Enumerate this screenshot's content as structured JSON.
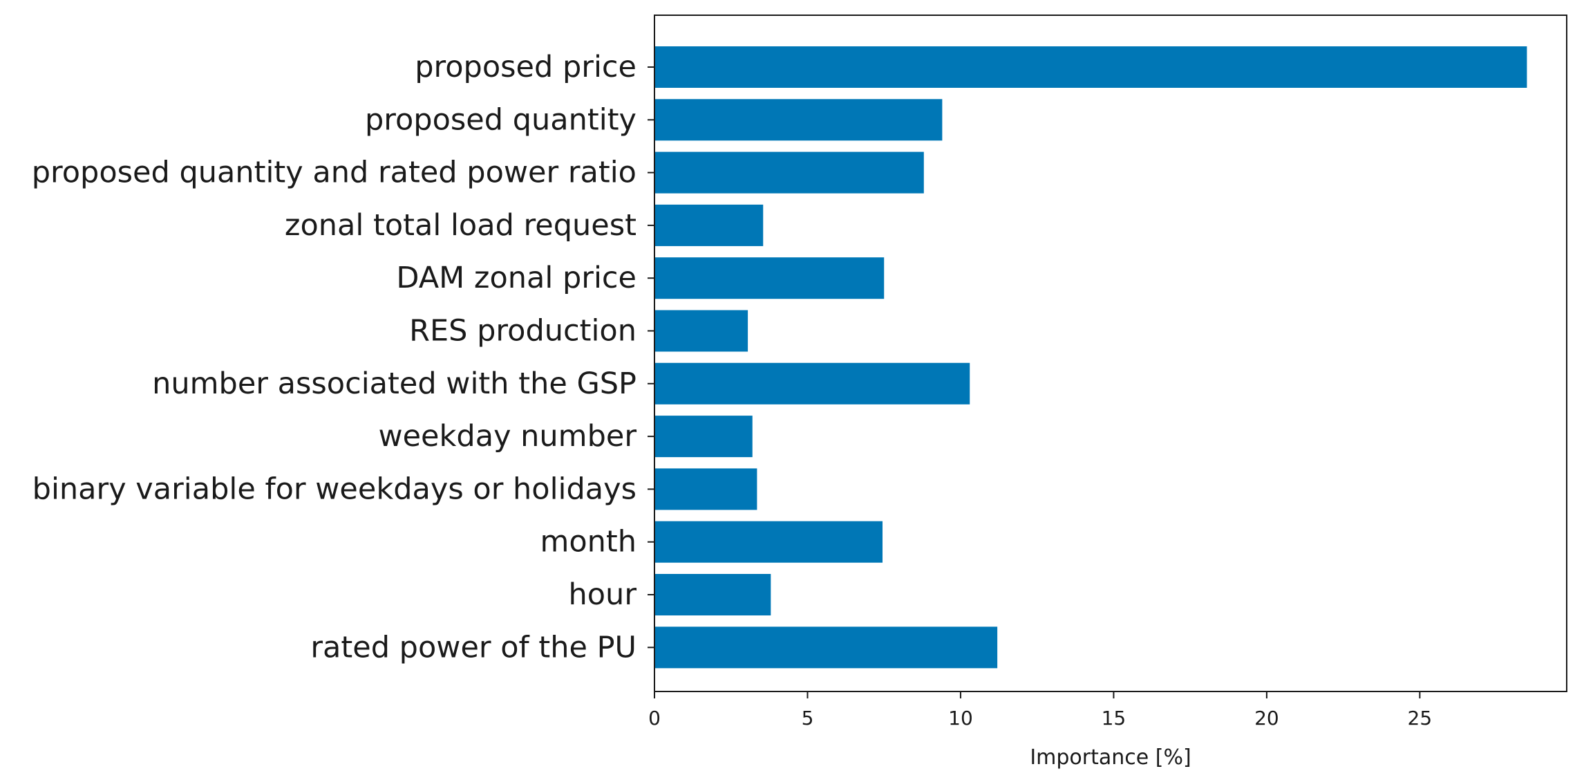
{
  "chart_data": {
    "type": "bar",
    "orientation": "horizontal",
    "title": "",
    "xlabel": "Importance [%]",
    "ylabel": "",
    "xlim": [
      0,
      29.8
    ],
    "xticks": [
      0,
      5,
      10,
      15,
      20,
      25
    ],
    "grid": false,
    "bar_color": "#0077b6",
    "categories": [
      "proposed price",
      "proposed quantity",
      "proposed quantity and rated power ratio",
      "zonal total load request",
      "DAM zonal price",
      "RES production",
      "number associated with the GSP",
      "weekday number",
      "binary variable for weekdays or holidays",
      "month",
      "hour",
      "rated power of the PU"
    ],
    "values": [
      28.5,
      9.4,
      8.8,
      3.55,
      7.5,
      3.05,
      10.3,
      3.2,
      3.35,
      7.45,
      3.8,
      11.2
    ]
  }
}
